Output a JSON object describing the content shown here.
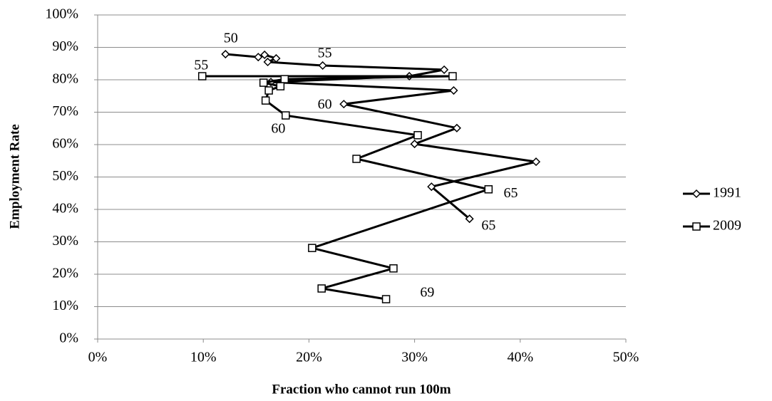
{
  "chart_data": {
    "type": "line",
    "x_label": "Fraction who cannot run 100m",
    "y_label": "Employment Rate",
    "xlim": [
      0,
      50
    ],
    "ylim": [
      0,
      100
    ],
    "xticks": [
      {
        "value": 0,
        "label": "0%"
      },
      {
        "value": 10,
        "label": "10%"
      },
      {
        "value": 20,
        "label": "20%"
      },
      {
        "value": 30,
        "label": "30%"
      },
      {
        "value": 40,
        "label": "40%"
      },
      {
        "value": 50,
        "label": "50%"
      }
    ],
    "yticks": [
      {
        "value": 0,
        "label": "0%"
      },
      {
        "value": 10,
        "label": "10%"
      },
      {
        "value": 20,
        "label": "20%"
      },
      {
        "value": 30,
        "label": "30%"
      },
      {
        "value": 40,
        "label": "40%"
      },
      {
        "value": 50,
        "label": "50%"
      },
      {
        "value": 60,
        "label": "60%"
      },
      {
        "value": 70,
        "label": "70%"
      },
      {
        "value": 80,
        "label": "80%"
      },
      {
        "value": 90,
        "label": "90%"
      },
      {
        "value": 100,
        "label": "100%"
      }
    ],
    "grid": true,
    "legend": "right",
    "series": [
      {
        "name": "1991",
        "color": "#000000",
        "marker": "diamond",
        "x": [
          12.1,
          15.2,
          15.8,
          16.9,
          16.1,
          21.3,
          32.8,
          29.5,
          16.4,
          33.7,
          23.3,
          34.0,
          30.0,
          41.5,
          31.6,
          35.2
        ],
        "values": [
          87.9,
          87.0,
          87.7,
          86.6,
          85.5,
          84.4,
          83.1,
          81.1,
          79.3,
          76.7,
          72.5,
          65.1,
          60.2,
          54.7,
          47.0,
          37.1
        ]
      },
      {
        "name": "2009",
        "color": "#000000",
        "marker": "square",
        "x": [
          9.9,
          33.6,
          17.7,
          15.7,
          17.3,
          16.2,
          15.9,
          17.8,
          30.3,
          24.5,
          37.0,
          20.3,
          28.0,
          21.2,
          27.3
        ],
        "values": [
          81.1,
          81.1,
          80.2,
          79.1,
          78.0,
          76.7,
          73.6,
          69.0,
          62.9,
          55.6,
          46.2,
          28.1,
          21.8,
          15.6,
          12.3
        ]
      }
    ],
    "annotations": [
      {
        "text": "50",
        "x": 12.6,
        "y": 92.5
      },
      {
        "text": "55",
        "x": 21.5,
        "y": 87.9
      },
      {
        "text": "55",
        "x": 9.8,
        "y": 84.2
      },
      {
        "text": "60",
        "x": 21.5,
        "y": 72.1
      },
      {
        "text": "60",
        "x": 17.1,
        "y": 64.6
      },
      {
        "text": "65",
        "x": 39.1,
        "y": 44.8
      },
      {
        "text": "65",
        "x": 37.0,
        "y": 34.7
      },
      {
        "text": "69",
        "x": 31.2,
        "y": 14.1
      }
    ]
  }
}
